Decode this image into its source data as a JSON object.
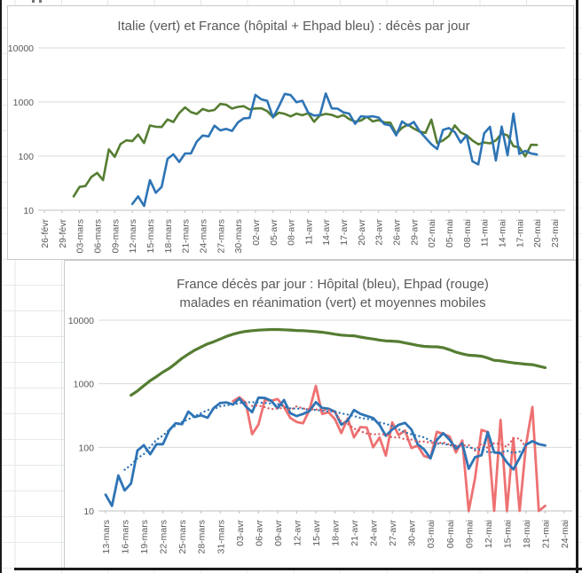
{
  "colors": {
    "italy_green": "#557d32",
    "france_blue": "#2e74b5",
    "ehpad_red": "#ee7172",
    "ma_red_dotted": "#d85a5e",
    "ma_blue_dotted": "#2e74b5",
    "gridline": "#d9d9d9",
    "axis_line": "#bfbfbf",
    "axis_text": "#595959",
    "title_text": "#595959",
    "chart_border": "#c9c9c9",
    "sheet_gridline": "#e3e7eb",
    "frame_border": "#1a1a1a"
  },
  "chart_data": [
    {
      "type": "line",
      "title": "Italie (vert) et France (hôpital + Ehpad bleu) : décès par jour",
      "y_axis": {
        "scale": "log",
        "min": 10,
        "max": 10000,
        "tick_labels": [
          "10",
          "100",
          "1000",
          "10000"
        ],
        "grid": true
      },
      "x_axis": {
        "start_date": "26-févr",
        "tick_interval_days": 3,
        "tick_labels": [
          "26-févr",
          "29-févr",
          "03-mars",
          "06-mars",
          "09-mars",
          "12-mars",
          "15-mars",
          "18-mars",
          "21-mars",
          "24-mars",
          "27-mars",
          "30-mars",
          "02-avr",
          "05-avr",
          "08-avr",
          "11-avr",
          "14-avr",
          "17-avr",
          "20-avr",
          "23-avr",
          "26-avr",
          "29-avr",
          "02-mai",
          "05-mai",
          "08-mai",
          "11-mai",
          "14-mai",
          "17-mai",
          "20-mai",
          "23-mai"
        ]
      },
      "series": [
        {
          "name": "Italie décès par jour",
          "color_key": "italy_green",
          "line_style": "solid",
          "start_day": 5,
          "start_date": "02-mars",
          "values": [
            18,
            27,
            28,
            41,
            49,
            36,
            133,
            97,
            168,
            196,
            189,
            250,
            175,
            368,
            349,
            345,
            475,
            427,
            627,
            793,
            651,
            601,
            743,
            683,
            712,
            919,
            889,
            756,
            812,
            837,
            727,
            760,
            766,
            681,
            525,
            636,
            604,
            542,
            610,
            570,
            619,
            431,
            566,
            602,
            578,
            525,
            575,
            482,
            433,
            454,
            534,
            437,
            464,
            420,
            415,
            260,
            333,
            382,
            323,
            285,
            269,
            474,
            174,
            195,
            236,
            369,
            274,
            243,
            194,
            165,
            179,
            172,
            195,
            262,
            242,
            153,
            145,
            99,
            162,
            161
          ]
        },
        {
          "name": "France hôpital + Ehpad décès par jour",
          "color_key": "france_blue",
          "line_style": "solid",
          "start_day": 15,
          "start_date": "12-mars",
          "values": [
            13,
            18,
            12,
            36,
            21,
            27,
            89,
            108,
            78,
            112,
            112,
            186,
            240,
            231,
            365,
            299,
            319,
            292,
            418,
            499,
            509,
            1355,
            1120,
            1053,
            518,
            833,
            1417,
            1341,
            987,
            1053,
            635,
            561,
            574,
            1438,
            762,
            753,
            642,
            611,
            395,
            547,
            531,
            544,
            516,
            389,
            369,
            242,
            437,
            367,
            427,
            289,
            218,
            166,
            135,
            306,
            330,
            278,
            178,
            243,
            80,
            70,
            263,
            348,
            83,
            351,
            104,
            613,
            110,
            125,
            112,
            107
          ]
        }
      ]
    },
    {
      "type": "line",
      "title_lines": [
        "France décès par jour : Hôpital (bleu), Ehpad (rouge)",
        "malades en réanimation (vert) et moyennes mobiles"
      ],
      "y_axis": {
        "scale": "log",
        "min": 10,
        "max": 10000,
        "tick_labels": [
          "10",
          "100",
          "1000",
          "10000"
        ],
        "grid": true
      },
      "x_axis": {
        "start_date": "13-mars",
        "tick_interval_days": 3,
        "tick_labels": [
          "13-mars",
          "16-mars",
          "19-mars",
          "22-mars",
          "25-mars",
          "28-mars",
          "31-mars",
          "03-avr",
          "06-avr",
          "09-avr",
          "12-avr",
          "15-avr",
          "18-avr",
          "21-avr",
          "24-avr",
          "27-avr",
          "30-avr",
          "03-mai",
          "06-mai",
          "09-mai",
          "12-mai",
          "15-mai",
          "18-mai",
          "21-mai",
          "24-mai"
        ]
      },
      "series": [
        {
          "name": "malades en réanimation",
          "color_key": "italy_green",
          "line_style": "solid",
          "start_day": 4,
          "start_date": "17-mars",
          "values": [
            660,
            771,
            931,
            1122,
            1297,
            1525,
            1746,
            2082,
            2516,
            2935,
            3375,
            3787,
            4236,
            4592,
            5056,
            5565,
            6017,
            6399,
            6662,
            6838,
            6978,
            7072,
            7131,
            7148,
            7066,
            7004,
            6883,
            6845,
            6730,
            6599,
            6457,
            6248,
            6027,
            5833,
            5744,
            5683,
            5433,
            5218,
            5053,
            4870,
            4725,
            4682,
            4608,
            4387,
            4207,
            4019,
            3878,
            3827,
            3819,
            3696,
            3430,
            3147,
            2961,
            2812,
            2776,
            2712,
            2542,
            2342,
            2299,
            2203,
            2132,
            2087,
            2031,
            1998,
            1894,
            1794
          ]
        },
        {
          "name": "Ehpad décès par jour",
          "color_key": "ehpad_red",
          "line_style": "solid",
          "start_day": 20,
          "start_date": "02-avr",
          "values": [
            532,
            612,
            502,
            161,
            228,
            560,
            540,
            575,
            433,
            290,
            251,
            239,
            388,
            924,
            336,
            356,
            278,
            168,
            284,
            144,
            208,
            205,
            100,
            143,
            74,
            246,
            156,
            184,
            98,
            106,
            73,
            68,
            175,
            163,
            147,
            83,
            128,
            6,
            33,
            188,
            174,
            8,
            270,
            5,
            140,
            4,
            110,
            430,
            3,
            12
          ]
        },
        {
          "name": "Hôpital décès par jour",
          "color_key": "france_blue",
          "line_style": "solid",
          "start_day": 0,
          "start_date": "13-mars",
          "values": [
            18,
            12,
            36,
            21,
            27,
            89,
            108,
            78,
            112,
            112,
            186,
            240,
            231,
            365,
            299,
            319,
            292,
            418,
            499,
            509,
            471,
            588,
            441,
            357,
            605,
            597,
            541,
            412,
            554,
            345,
            310,
            335,
            374,
            514,
            417,
            405,
            364,
            227,
            263,
            387,
            336,
            311,
            289,
            226,
            152,
            191,
            226,
            243,
            191,
            112,
            93,
            67,
            131,
            167,
            131,
            95,
            115,
            46,
            70,
            75,
            174,
            83,
            81,
            58,
            45,
            68,
            110,
            125,
            112,
            107
          ]
        }
      ],
      "moving_averages": [
        {
          "name": "moyenne mobile Ehpad",
          "source_index": 1,
          "window": 7,
          "color_key": "ma_red_dotted",
          "line_style": "dotted"
        },
        {
          "name": "moyenne mobile hôpital",
          "source_index": 2,
          "window": 7,
          "color_key": "ma_blue_dotted",
          "line_style": "dotted"
        }
      ]
    }
  ]
}
